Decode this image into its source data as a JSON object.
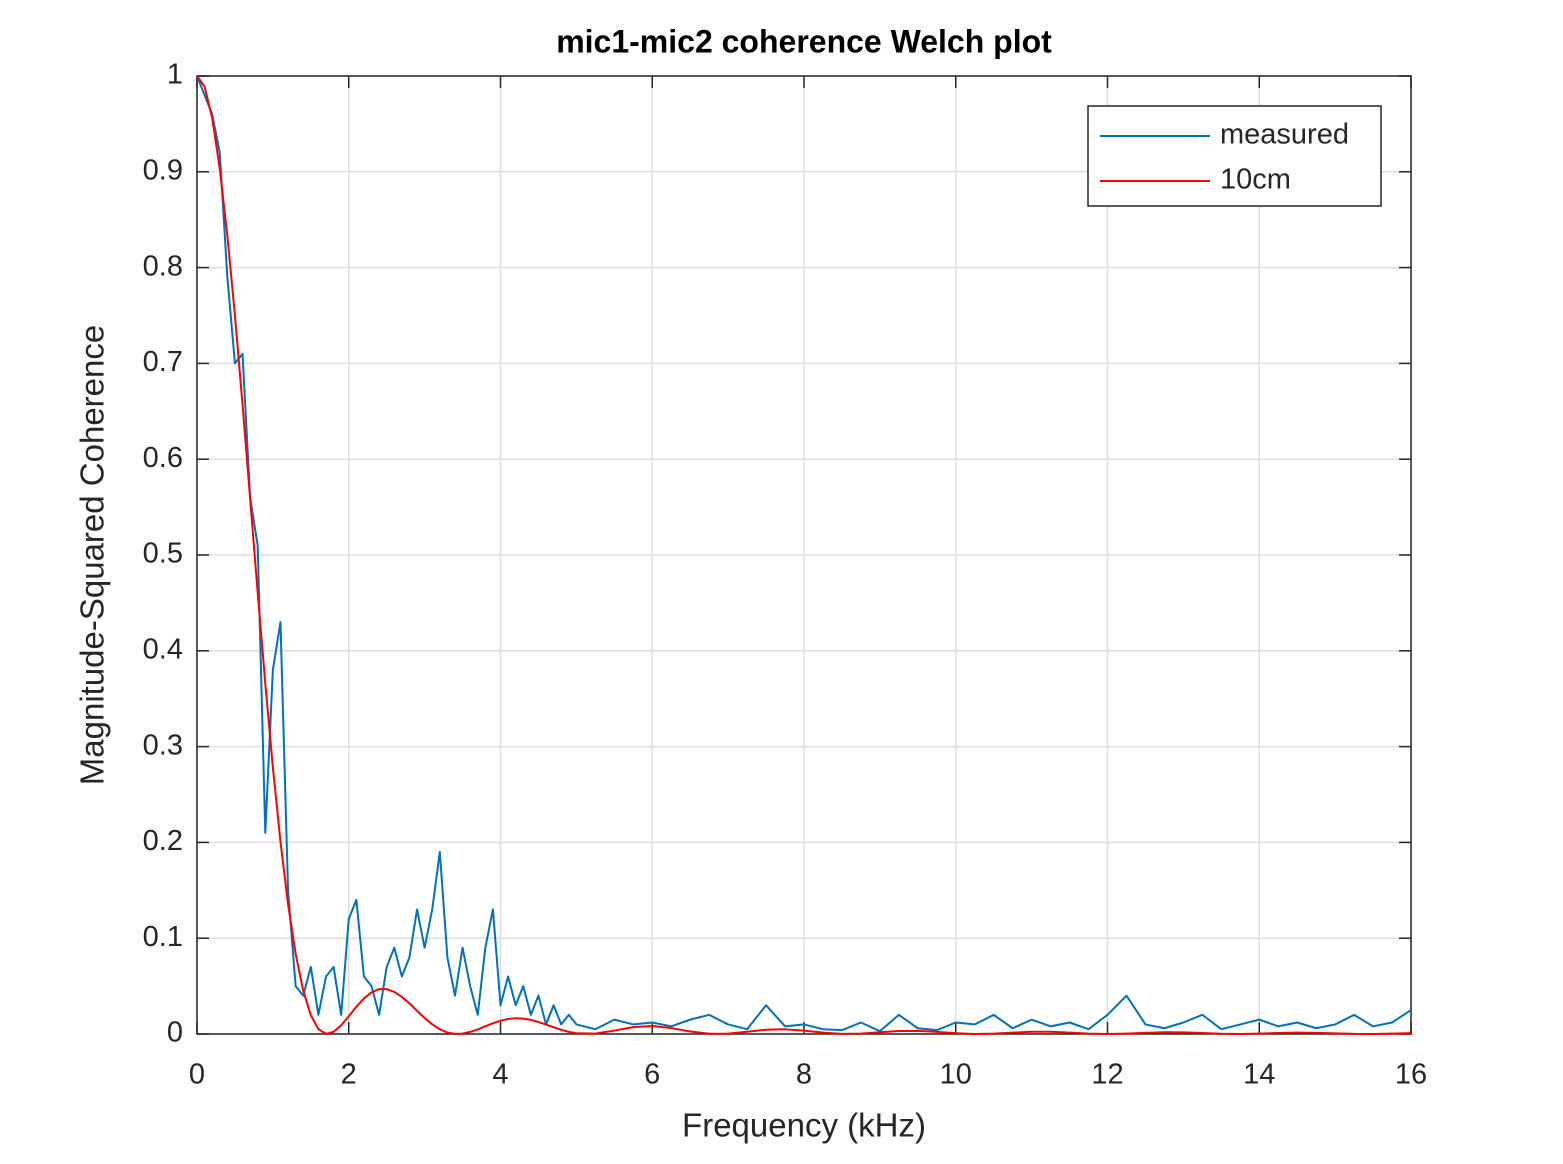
{
  "chart_data": {
    "type": "line",
    "title": "mic1-mic2 coherence Welch plot",
    "x_label": "Frequency (kHz)",
    "y_label": "Magnitude-Squared Coherence",
    "x": [
      0,
      0.1,
      0.2,
      0.3,
      0.4,
      0.5,
      0.6,
      0.7,
      0.8,
      0.9,
      1.0,
      1.1,
      1.2,
      1.3,
      1.4,
      1.5,
      1.6,
      1.7,
      1.8,
      1.9,
      2.0,
      2.1,
      2.2,
      2.3,
      2.4,
      2.5,
      2.6,
      2.7,
      2.8,
      2.9,
      3.0,
      3.1,
      3.2,
      3.3,
      3.4,
      3.5,
      3.6,
      3.7,
      3.8,
      3.9,
      4.0,
      4.1,
      4.2,
      4.3,
      4.4,
      4.5,
      4.6,
      4.7,
      4.8,
      4.9,
      5.0,
      5.25,
      5.5,
      5.75,
      6.0,
      6.25,
      6.5,
      6.75,
      7.0,
      7.25,
      7.5,
      7.75,
      8.0,
      8.25,
      8.5,
      8.75,
      9.0,
      9.25,
      9.5,
      9.75,
      10.0,
      10.25,
      10.5,
      10.75,
      11.0,
      11.25,
      11.5,
      11.75,
      12.0,
      12.25,
      12.5,
      12.75,
      13.0,
      13.25,
      13.5,
      13.75,
      14.0,
      14.25,
      14.5,
      14.75,
      15.0,
      15.25,
      15.5,
      15.75,
      16.0
    ],
    "series": [
      {
        "name": "measured",
        "color": "#0072bd",
        "values": [
          1,
          0.98,
          0.96,
          0.92,
          0.79,
          0.7,
          0.71,
          0.56,
          0.51,
          0.21,
          0.38,
          0.43,
          0.15,
          0.05,
          0.04,
          0.07,
          0.02,
          0.06,
          0.07,
          0.02,
          0.12,
          0.14,
          0.06,
          0.05,
          0.02,
          0.07,
          0.09,
          0.06,
          0.08,
          0.13,
          0.09,
          0.13,
          0.19,
          0.08,
          0.04,
          0.09,
          0.05,
          0.02,
          0.09,
          0.13,
          0.03,
          0.06,
          0.03,
          0.05,
          0.02,
          0.04,
          0.01,
          0.03,
          0.01,
          0.02,
          0.01,
          0.005,
          0.015,
          0.01,
          0.012,
          0.008,
          0.015,
          0.02,
          0.01,
          0.005,
          0.03,
          0.008,
          0.01,
          0.005,
          0.004,
          0.012,
          0.003,
          0.02,
          0.006,
          0.004,
          0.012,
          0.01,
          0.02,
          0.006,
          0.015,
          0.008,
          0.012,
          0.005,
          0.02,
          0.04,
          0.01,
          0.006,
          0.012,
          0.02,
          0.005,
          0.01,
          0.015,
          0.008,
          0.012,
          0.006,
          0.01,
          0.02,
          0.008,
          0.012,
          0.025
        ]
      },
      {
        "name": "10cm",
        "color": "#ff0000",
        "values": [
          1,
          0.9889,
          0.9563,
          0.9034,
          0.8334,
          0.75,
          0.657,
          0.559,
          0.4605,
          0.3658,
          0.2782,
          0.2008,
          0.1356,
          0.0837,
          0.0452,
          0.0195,
          0.0051,
          0.0001,
          0.0022,
          0.0091,
          0.0184,
          0.0284,
          0.0371,
          0.0434,
          0.0469,
          0.0468,
          0.0439,
          0.0387,
          0.0319,
          0.0243,
          0.0167,
          0.0101,
          0.0049,
          0.0015,
          0.0001,
          0.0004,
          0.0022,
          0.0048,
          0.008,
          0.0112,
          0.0138,
          0.0157,
          0.0165,
          0.0161,
          0.0147,
          0.0125,
          0.0098,
          0.007,
          0.0044,
          0.0022,
          0.0008,
          0.0004,
          0.0036,
          0.0072,
          0.0083,
          0.0062,
          0.0026,
          0.0003,
          0.0004,
          0.0024,
          0.0045,
          0.0049,
          0.0035,
          0.0014,
          0.0001,
          0.0004,
          0.0018,
          0.0031,
          0.0033,
          0.0022,
          0.0008,
          0,
          0.0004,
          0.0014,
          0.0023,
          0.0023,
          0.0014,
          0.0004,
          0,
          0.0004,
          0.0012,
          0.0018,
          0.0017,
          0.001,
          0.0002,
          0,
          0.0004,
          0.001,
          0.0014,
          0.0012,
          0.0007,
          0.0001,
          0,
          0.0004,
          0.0009
        ]
      }
    ],
    "xlim": [
      0,
      16
    ],
    "xticks": [
      0,
      2,
      4,
      6,
      8,
      10,
      12,
      14,
      16
    ],
    "ylim": [
      0,
      1
    ],
    "yticks": [
      0,
      0.1,
      0.2,
      0.3,
      0.4,
      0.5,
      0.6,
      0.7,
      0.8,
      0.9,
      1
    ],
    "grid": true,
    "legend": "top-right"
  }
}
